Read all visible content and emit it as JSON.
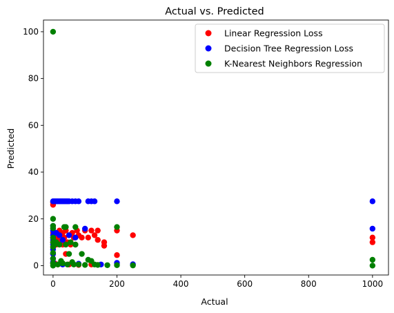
{
  "chart_data": {
    "type": "scatter",
    "title": "Actual vs. Predicted",
    "xlabel": "Actual",
    "ylabel": "Predicted",
    "xlim": [
      -30,
      1050
    ],
    "ylim": [
      -4,
      105
    ],
    "xticks": [
      0,
      200,
      400,
      600,
      800,
      1000
    ],
    "yticks": [
      0,
      20,
      40,
      60,
      80,
      100
    ],
    "grid": false,
    "legend_position": "top-right",
    "series": [
      {
        "name": "Linear Regression Loss",
        "color": "#ff0000",
        "points": [
          [
            0,
            26
          ],
          [
            0,
            27
          ],
          [
            0,
            16
          ],
          [
            0,
            14
          ],
          [
            0,
            12
          ],
          [
            0,
            10
          ],
          [
            0,
            8
          ],
          [
            0,
            5
          ],
          [
            0,
            3
          ],
          [
            0,
            1
          ],
          [
            5,
            13
          ],
          [
            10,
            12
          ],
          [
            10,
            9
          ],
          [
            15,
            11
          ],
          [
            20,
            15
          ],
          [
            20,
            10
          ],
          [
            25,
            13
          ],
          [
            30,
            9
          ],
          [
            30,
            14
          ],
          [
            35,
            12
          ],
          [
            40,
            5
          ],
          [
            40,
            15
          ],
          [
            45,
            10
          ],
          [
            50,
            13
          ],
          [
            55,
            9
          ],
          [
            60,
            14
          ],
          [
            65,
            12
          ],
          [
            70,
            9
          ],
          [
            75,
            15
          ],
          [
            80,
            13
          ],
          [
            90,
            12
          ],
          [
            100,
            15
          ],
          [
            110,
            12
          ],
          [
            120,
            15
          ],
          [
            130,
            13
          ],
          [
            140,
            15
          ],
          [
            140,
            11
          ],
          [
            160,
            10
          ],
          [
            160,
            8.5
          ],
          [
            200,
            15
          ],
          [
            200,
            4.5
          ],
          [
            250,
            13
          ],
          [
            5,
            1
          ],
          [
            15,
            0.5
          ],
          [
            30,
            1
          ],
          [
            50,
            0.5
          ],
          [
            80,
            0.3
          ],
          [
            120,
            0.5
          ],
          [
            1000,
            12
          ],
          [
            1000,
            10
          ]
        ]
      },
      {
        "name": "Decision Tree Regression Loss",
        "color": "#0000ff",
        "points": [
          [
            0,
            27.5
          ],
          [
            5,
            27.5
          ],
          [
            10,
            27.5
          ],
          [
            15,
            27.5
          ],
          [
            20,
            27.5
          ],
          [
            25,
            27.5
          ],
          [
            30,
            27.5
          ],
          [
            35,
            27.5
          ],
          [
            40,
            27.5
          ],
          [
            45,
            27.5
          ],
          [
            50,
            27.5
          ],
          [
            60,
            27.5
          ],
          [
            70,
            27.5
          ],
          [
            80,
            27.5
          ],
          [
            110,
            27.5
          ],
          [
            120,
            27.5
          ],
          [
            130,
            27.5
          ],
          [
            200,
            27.5
          ],
          [
            0,
            17
          ],
          [
            0,
            15
          ],
          [
            0,
            13
          ],
          [
            0,
            12
          ],
          [
            0,
            11
          ],
          [
            0,
            9
          ],
          [
            0,
            7
          ],
          [
            0,
            5
          ],
          [
            0,
            3
          ],
          [
            0,
            1.5
          ],
          [
            10,
            14
          ],
          [
            20,
            13
          ],
          [
            30,
            11
          ],
          [
            50,
            13
          ],
          [
            70,
            12
          ],
          [
            100,
            15.8
          ],
          [
            150,
            0.5
          ],
          [
            200,
            1.2
          ],
          [
            250,
            0.6
          ],
          [
            30,
            0.5
          ],
          [
            80,
            0.8
          ],
          [
            1000,
            27.5
          ],
          [
            1000,
            15.8
          ]
        ]
      },
      {
        "name": "K-Nearest Neighbors Regression",
        "color": "#008000",
        "points": [
          [
            0,
            100
          ],
          [
            0,
            20
          ],
          [
            0,
            17
          ],
          [
            0,
            16
          ],
          [
            0,
            12
          ],
          [
            0,
            10
          ],
          [
            0,
            8
          ],
          [
            0,
            5.5
          ],
          [
            0,
            3
          ],
          [
            0,
            1
          ],
          [
            0,
            0
          ],
          [
            5,
            9
          ],
          [
            10,
            10
          ],
          [
            15,
            0.5
          ],
          [
            20,
            9
          ],
          [
            25,
            2
          ],
          [
            30,
            1
          ],
          [
            35,
            16.5
          ],
          [
            40,
            16.5
          ],
          [
            40,
            9
          ],
          [
            45,
            0.5
          ],
          [
            50,
            5
          ],
          [
            55,
            10
          ],
          [
            60,
            1.5
          ],
          [
            65,
            0.5
          ],
          [
            70,
            16.5
          ],
          [
            70,
            9
          ],
          [
            80,
            0.5
          ],
          [
            90,
            5
          ],
          [
            100,
            0.3
          ],
          [
            110,
            2.5
          ],
          [
            120,
            2
          ],
          [
            130,
            0.5
          ],
          [
            140,
            0.3
          ],
          [
            170,
            0.2
          ],
          [
            200,
            16.5
          ],
          [
            200,
            0.2
          ],
          [
            250,
            0.1
          ],
          [
            1000,
            2.5
          ],
          [
            1000,
            0
          ]
        ]
      }
    ]
  }
}
